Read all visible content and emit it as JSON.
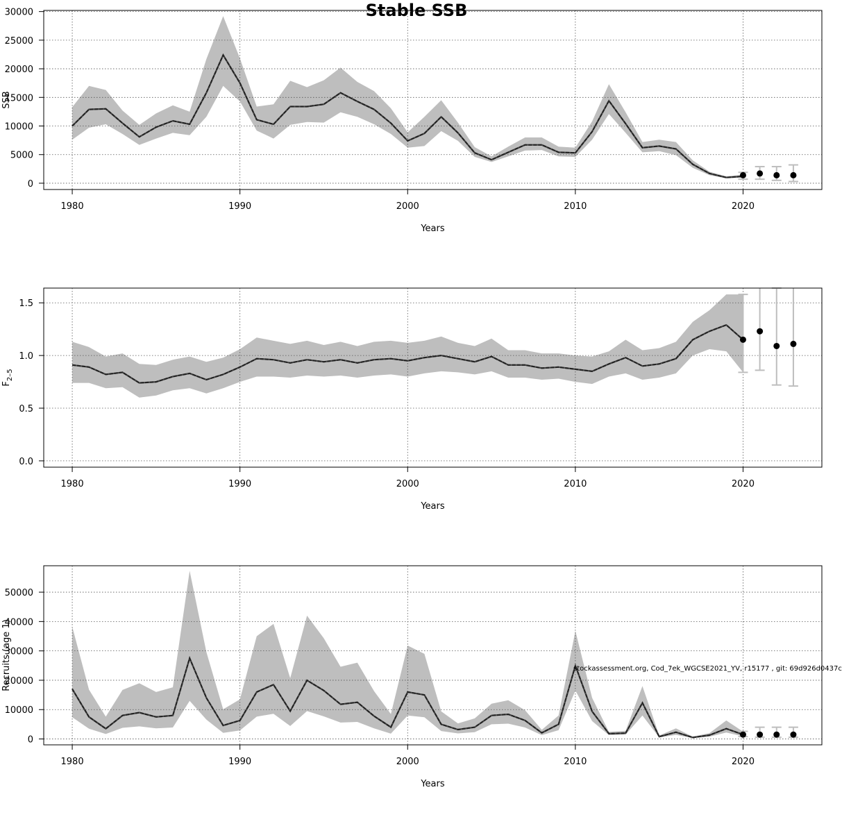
{
  "figure": {
    "title": "Stable SSB",
    "footnote": "stockassessment.org, Cod_7ek_WGCSE2021_YV, r15177 , git: 69d926d0437c"
  },
  "colors": {
    "band": "#bebebe",
    "line": "#222222",
    "grid": "#555555",
    "errorbar": "#bebebe",
    "point": "#000000"
  },
  "chart_data": [
    {
      "type": "line",
      "panel": "ssb",
      "xlabel": "Years",
      "ylabel": "SSB",
      "xlim": [
        1978.3,
        2024.7
      ],
      "ylim": [
        -1100,
        30200
      ],
      "xticks": [
        1980,
        1990,
        2000,
        2010,
        2020
      ],
      "yticks": [
        0,
        5000,
        10000,
        15000,
        20000,
        25000,
        30000
      ],
      "ytick_labels": [
        "0",
        "5000",
        "10000",
        "15000",
        "20000",
        "25000",
        "30000"
      ],
      "grid": true,
      "x": [
        1980,
        1981,
        1982,
        1983,
        1984,
        1985,
        1986,
        1987,
        1988,
        1989,
        1990,
        1991,
        1992,
        1993,
        1994,
        1995,
        1996,
        1997,
        1998,
        1999,
        2000,
        2001,
        2002,
        2003,
        2004,
        2005,
        2006,
        2007,
        2008,
        2009,
        2010,
        2011,
        2012,
        2013,
        2014,
        2015,
        2016,
        2017,
        2018,
        2019,
        2020
      ],
      "estimate": [
        10000,
        12900,
        13000,
        10500,
        8100,
        9800,
        10900,
        10300,
        15800,
        22400,
        17500,
        11100,
        10300,
        13400,
        13400,
        13800,
        15800,
        14300,
        12900,
        10500,
        7400,
        8700,
        11600,
        8800,
        5300,
        4100,
        5400,
        6700,
        6700,
        5400,
        5300,
        9000,
        14400,
        10400,
        6200,
        6500,
        6000,
        3300,
        1700,
        1000,
        1200
      ],
      "lower": [
        7600,
        9700,
        10300,
        8600,
        6700,
        7800,
        8800,
        8400,
        11600,
        17000,
        14300,
        9200,
        7800,
        10200,
        10700,
        10600,
        12400,
        11600,
        10300,
        8600,
        6200,
        6500,
        9100,
        7400,
        4600,
        3700,
        4700,
        5700,
        5800,
        4700,
        4600,
        7600,
        12100,
        8800,
        5400,
        5600,
        4900,
        2700,
        1400,
        850,
        1000
      ],
      "upper": [
        13300,
        17000,
        16300,
        12700,
        10200,
        12200,
        13600,
        12500,
        21700,
        29200,
        21800,
        13400,
        13800,
        17900,
        16800,
        18000,
        20200,
        17700,
        16100,
        13100,
        8900,
        11600,
        14500,
        10600,
        6300,
        4700,
        6400,
        8000,
        8000,
        6400,
        6200,
        10800,
        17300,
        12400,
        7200,
        7600,
        7200,
        4000,
        2000,
        1200,
        1500
      ],
      "forecast": {
        "x": [
          2020,
          2021,
          2022,
          2023
        ],
        "median": [
          1400,
          1700,
          1400,
          1400
        ],
        "lower": [
          700,
          700,
          500,
          300
        ],
        "upper": [
          1900,
          2900,
          2900,
          3200
        ]
      }
    },
    {
      "type": "line",
      "panel": "fishing-mortality",
      "xlabel": "Years",
      "ylabel": "F",
      "ylabel_subscript": "2–5",
      "xlim": [
        1978.3,
        2024.7
      ],
      "ylim": [
        -0.06,
        1.64
      ],
      "xticks": [
        1980,
        1990,
        2000,
        2010,
        2020
      ],
      "yticks": [
        0,
        0.5,
        1,
        1.5
      ],
      "ytick_labels": [
        "0.0",
        "0.5",
        "1.0",
        "1.5"
      ],
      "grid": true,
      "x": [
        1980,
        1981,
        1982,
        1983,
        1984,
        1985,
        1986,
        1987,
        1988,
        1989,
        1990,
        1991,
        1992,
        1993,
        1994,
        1995,
        1996,
        1997,
        1998,
        1999,
        2000,
        2001,
        2002,
        2003,
        2004,
        2005,
        2006,
        2007,
        2008,
        2009,
        2010,
        2011,
        2012,
        2013,
        2014,
        2015,
        2016,
        2017,
        2018,
        2019,
        2020
      ],
      "estimate": [
        0.91,
        0.89,
        0.82,
        0.84,
        0.74,
        0.75,
        0.8,
        0.83,
        0.77,
        0.82,
        0.89,
        0.97,
        0.96,
        0.93,
        0.96,
        0.94,
        0.96,
        0.93,
        0.96,
        0.97,
        0.95,
        0.98,
        1.0,
        0.97,
        0.94,
        0.99,
        0.91,
        0.91,
        0.88,
        0.89,
        0.87,
        0.85,
        0.92,
        0.98,
        0.9,
        0.92,
        0.97,
        1.15,
        1.23,
        1.29,
        1.15
      ],
      "lower": [
        0.74,
        0.74,
        0.69,
        0.7,
        0.6,
        0.62,
        0.67,
        0.69,
        0.64,
        0.69,
        0.75,
        0.8,
        0.8,
        0.79,
        0.81,
        0.8,
        0.81,
        0.79,
        0.81,
        0.82,
        0.8,
        0.83,
        0.85,
        0.84,
        0.82,
        0.85,
        0.79,
        0.79,
        0.77,
        0.78,
        0.75,
        0.73,
        0.8,
        0.83,
        0.77,
        0.79,
        0.83,
        1.0,
        1.06,
        1.04,
        0.84
      ],
      "upper": [
        1.13,
        1.08,
        0.99,
        1.02,
        0.92,
        0.91,
        0.96,
        0.99,
        0.94,
        0.98,
        1.06,
        1.17,
        1.14,
        1.11,
        1.14,
        1.1,
        1.13,
        1.09,
        1.13,
        1.14,
        1.12,
        1.14,
        1.18,
        1.12,
        1.09,
        1.16,
        1.05,
        1.05,
        1.02,
        1.02,
        1.0,
        0.99,
        1.04,
        1.15,
        1.05,
        1.07,
        1.13,
        1.32,
        1.43,
        1.58,
        1.58
      ],
      "forecast": {
        "x": [
          2020,
          2021,
          2022,
          2023
        ],
        "median": [
          1.15,
          1.23,
          1.09,
          1.11
        ],
        "lower": [
          0.84,
          0.86,
          0.72,
          0.71
        ],
        "upper": [
          1.58,
          1.7,
          1.64,
          1.7
        ]
      }
    },
    {
      "type": "line",
      "panel": "recruitment",
      "xlabel": "Years",
      "ylabel": "Recruits (age 1)",
      "xlim": [
        1978.3,
        2024.7
      ],
      "ylim": [
        -2000,
        59000
      ],
      "xticks": [
        1980,
        1990,
        2000,
        2010,
        2020
      ],
      "yticks": [
        0,
        10000,
        20000,
        30000,
        40000,
        50000
      ],
      "ytick_labels": [
        "0",
        "10000",
        "20000",
        "30000",
        "40000",
        "50000"
      ],
      "grid": true,
      "x": [
        1980,
        1981,
        1982,
        1983,
        1984,
        1985,
        1986,
        1987,
        1988,
        1989,
        1990,
        1991,
        1992,
        1993,
        1994,
        1995,
        1996,
        1997,
        1998,
        1999,
        2000,
        2001,
        2002,
        2003,
        2004,
        2005,
        2006,
        2007,
        2008,
        2009,
        2010,
        2011,
        2012,
        2013,
        2014,
        2015,
        2016,
        2017,
        2018,
        2019,
        2020
      ],
      "estimate": [
        17000,
        7500,
        3500,
        8000,
        9000,
        7500,
        8000,
        27500,
        14000,
        4600,
        6300,
        16000,
        18500,
        9500,
        20000,
        16500,
        11800,
        12500,
        7800,
        4000,
        16000,
        15000,
        5000,
        3200,
        4000,
        8000,
        8400,
        6300,
        2100,
        5000,
        25000,
        9400,
        1800,
        2000,
        12300,
        800,
        2300,
        500,
        1300,
        3500,
        1500
      ],
      "lower": [
        7400,
        3500,
        1700,
        3800,
        4300,
        3600,
        3900,
        13000,
        6600,
        2100,
        2900,
        7600,
        8600,
        4400,
        9500,
        7700,
        5600,
        5800,
        3600,
        1800,
        8000,
        7400,
        2700,
        1900,
        2300,
        5000,
        5200,
        3900,
        1300,
        3000,
        16500,
        6100,
        1300,
        1500,
        8000,
        500,
        1400,
        300,
        800,
        2200,
        900
      ],
      "upper": [
        38200,
        16800,
        7600,
        16700,
        19000,
        16000,
        17600,
        57300,
        29600,
        10100,
        13500,
        35000,
        39200,
        20700,
        42000,
        34300,
        24600,
        26000,
        16300,
        8500,
        31800,
        29000,
        9400,
        5300,
        7000,
        12000,
        13200,
        9800,
        3100,
        8000,
        36800,
        14000,
        2400,
        2800,
        18000,
        1200,
        3600,
        800,
        2000,
        6300,
        2500
      ],
      "forecast": {
        "x": [
          2020,
          2021,
          2022,
          2023
        ],
        "median": [
          1500,
          1500,
          1500,
          1500
        ],
        "lower": [
          800,
          600,
          600,
          600
        ],
        "upper": [
          2600,
          4000,
          4000,
          4000
        ]
      }
    }
  ]
}
